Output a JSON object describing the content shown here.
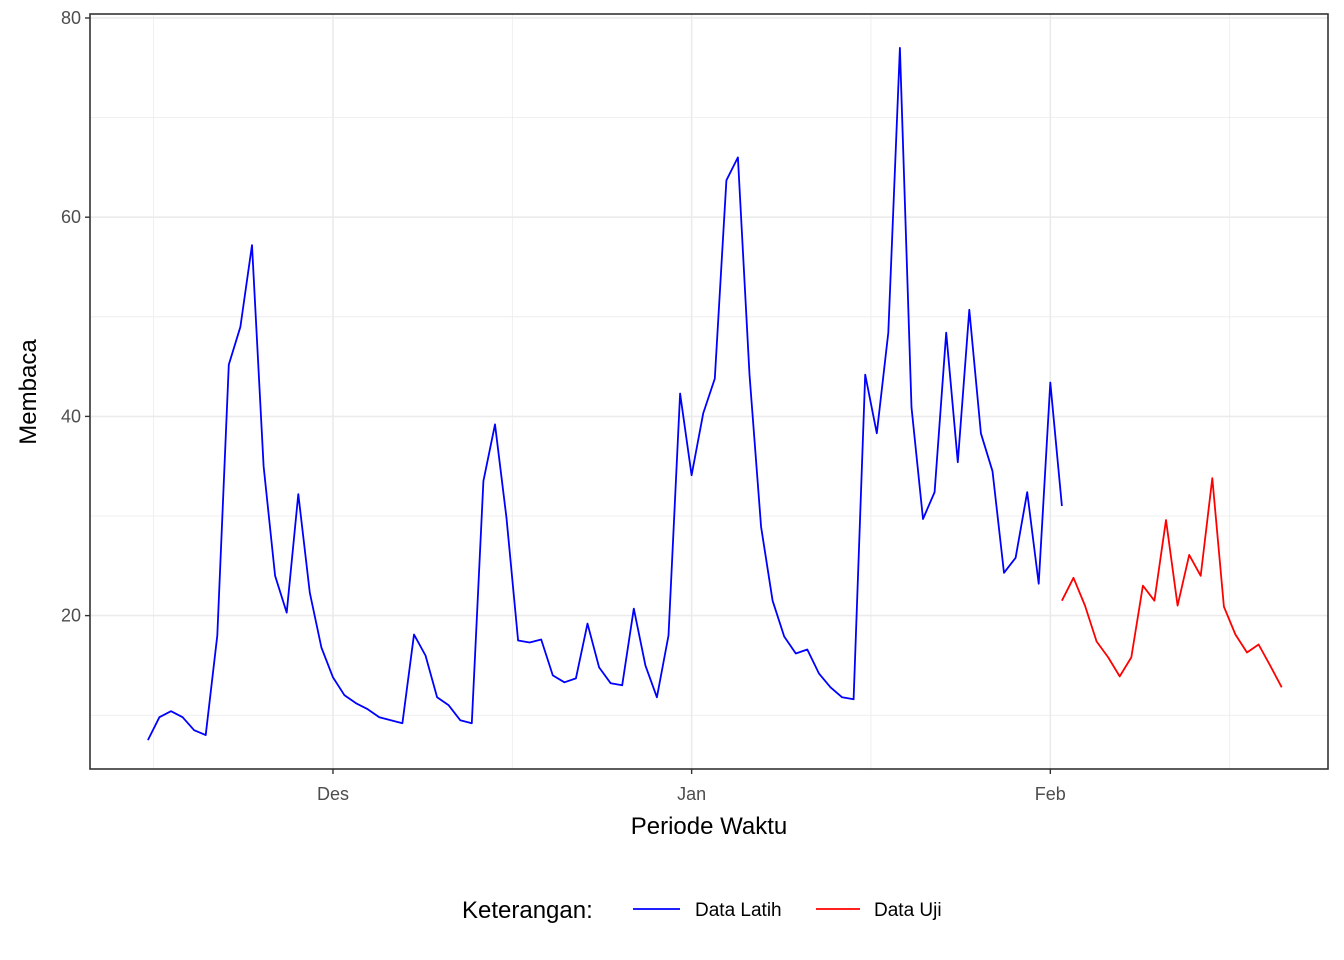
{
  "chart_data": {
    "type": "line",
    "xlabel": "Periode Waktu",
    "ylabel": "Membaca",
    "x_ticks": [
      {
        "date": "2021-12-01",
        "label": "Des"
      },
      {
        "date": "2022-01-01",
        "label": "Jan"
      },
      {
        "date": "2022-02-01",
        "label": "Feb"
      }
    ],
    "y_ticks": [
      20,
      40,
      60,
      80
    ],
    "xlim": [
      "2021-11-10",
      "2022-02-25"
    ],
    "ylim": [
      4.6,
      80.4
    ],
    "grid": true,
    "legend": {
      "title": "Keterangan:",
      "position": "bottom",
      "entries": [
        {
          "label": "Data Latih",
          "color": "#0000ff"
        },
        {
          "label": "Data Uji",
          "color": "#ff0000"
        }
      ]
    },
    "series": [
      {
        "name": "Data Latih",
        "color": "#0000ff",
        "points": [
          [
            "2021-11-15",
            7.5
          ],
          [
            "2021-11-16",
            9.8
          ],
          [
            "2021-11-17",
            10.4
          ],
          [
            "2021-11-18",
            9.8
          ],
          [
            "2021-11-19",
            8.5
          ],
          [
            "2021-11-20",
            8.0
          ],
          [
            "2021-11-21",
            18.0
          ],
          [
            "2021-11-22",
            45.2
          ],
          [
            "2021-11-23",
            49.0
          ],
          [
            "2021-11-24",
            57.2
          ],
          [
            "2021-11-25",
            35.0
          ],
          [
            "2021-11-26",
            24.0
          ],
          [
            "2021-11-27",
            20.3
          ],
          [
            "2021-11-28",
            32.2
          ],
          [
            "2021-11-29",
            22.3
          ],
          [
            "2021-11-30",
            16.8
          ],
          [
            "2021-12-01",
            13.8
          ],
          [
            "2021-12-02",
            12.0
          ],
          [
            "2021-12-03",
            11.2
          ],
          [
            "2021-12-04",
            10.6
          ],
          [
            "2021-12-05",
            9.8
          ],
          [
            "2021-12-06",
            9.5
          ],
          [
            "2021-12-07",
            9.2
          ],
          [
            "2021-12-08",
            18.1
          ],
          [
            "2021-12-09",
            16.0
          ],
          [
            "2021-12-10",
            11.8
          ],
          [
            "2021-12-11",
            11.0
          ],
          [
            "2021-12-12",
            9.5
          ],
          [
            "2021-12-13",
            9.2
          ],
          [
            "2021-12-14",
            33.5
          ],
          [
            "2021-12-15",
            39.2
          ],
          [
            "2021-12-16",
            29.8
          ],
          [
            "2021-12-17",
            17.5
          ],
          [
            "2021-12-18",
            17.3
          ],
          [
            "2021-12-19",
            17.6
          ],
          [
            "2021-12-20",
            14.0
          ],
          [
            "2021-12-21",
            13.3
          ],
          [
            "2021-12-22",
            13.7
          ],
          [
            "2021-12-23",
            19.2
          ],
          [
            "2021-12-24",
            14.8
          ],
          [
            "2021-12-25",
            13.2
          ],
          [
            "2021-12-26",
            13.0
          ],
          [
            "2021-12-27",
            20.7
          ],
          [
            "2021-12-28",
            15.0
          ],
          [
            "2021-12-29",
            11.8
          ],
          [
            "2021-12-30",
            18.0
          ],
          [
            "2021-12-31",
            42.3
          ],
          [
            "2022-01-01",
            34.1
          ],
          [
            "2022-01-02",
            40.3
          ],
          [
            "2022-01-03",
            43.8
          ],
          [
            "2022-01-04",
            63.7
          ],
          [
            "2022-01-05",
            66.0
          ],
          [
            "2022-01-06",
            44.2
          ],
          [
            "2022-01-07",
            28.9
          ],
          [
            "2022-01-08",
            21.5
          ],
          [
            "2022-01-09",
            17.9
          ],
          [
            "2022-01-10",
            16.2
          ],
          [
            "2022-01-11",
            16.6
          ],
          [
            "2022-01-12",
            14.2
          ],
          [
            "2022-01-13",
            12.8
          ],
          [
            "2022-01-14",
            11.8
          ],
          [
            "2022-01-15",
            11.6
          ],
          [
            "2022-01-16",
            44.2
          ],
          [
            "2022-01-17",
            38.3
          ],
          [
            "2022-01-18",
            48.4
          ],
          [
            "2022-01-19",
            77.0
          ],
          [
            "2022-01-20",
            40.9
          ],
          [
            "2022-01-21",
            29.7
          ],
          [
            "2022-01-22",
            32.4
          ],
          [
            "2022-01-23",
            48.4
          ],
          [
            "2022-01-24",
            35.4
          ],
          [
            "2022-01-25",
            50.7
          ],
          [
            "2022-01-26",
            38.3
          ],
          [
            "2022-01-27",
            34.5
          ],
          [
            "2022-01-28",
            24.3
          ],
          [
            "2022-01-29",
            25.8
          ],
          [
            "2022-01-30",
            32.4
          ],
          [
            "2022-01-31",
            23.2
          ],
          [
            "2022-02-01",
            43.4
          ],
          [
            "2022-02-02",
            31.0
          ]
        ]
      },
      {
        "name": "Data Uji",
        "color": "#ff0000",
        "points": [
          [
            "2022-02-02",
            21.5
          ],
          [
            "2022-02-03",
            23.8
          ],
          [
            "2022-02-04",
            21.0
          ],
          [
            "2022-02-05",
            17.4
          ],
          [
            "2022-02-06",
            15.8
          ],
          [
            "2022-02-07",
            13.9
          ],
          [
            "2022-02-08",
            15.8
          ],
          [
            "2022-02-09",
            23.0
          ],
          [
            "2022-02-10",
            21.5
          ],
          [
            "2022-02-11",
            29.6
          ],
          [
            "2022-02-12",
            21.0
          ],
          [
            "2022-02-13",
            26.1
          ],
          [
            "2022-02-14",
            24.0
          ],
          [
            "2022-02-15",
            33.8
          ],
          [
            "2022-02-16",
            20.9
          ],
          [
            "2022-02-17",
            18.1
          ],
          [
            "2022-02-18",
            16.3
          ],
          [
            "2022-02-19",
            17.1
          ],
          [
            "2022-02-20",
            15.0
          ],
          [
            "2022-02-21",
            12.8
          ]
        ]
      }
    ]
  }
}
